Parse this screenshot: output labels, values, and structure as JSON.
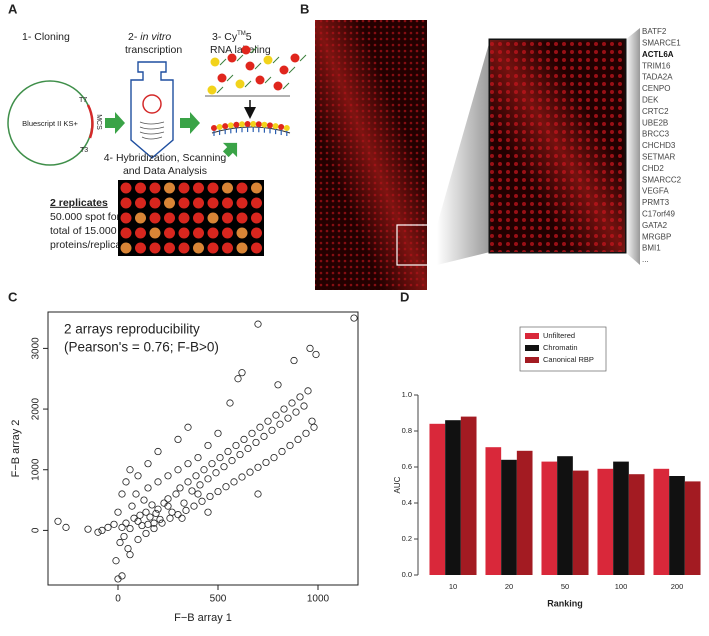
{
  "panel_a": {
    "label": "A",
    "step1": "1- Cloning",
    "step2": [
      "2-",
      "in vitro",
      "transcription"
    ],
    "step3": [
      "3- Cy",
      "TM",
      "5",
      "RNA labeling"
    ],
    "plasmid": "Bluescript II KS+",
    "t7": "T7",
    "t3": "T3",
    "mcs": "MCS",
    "step4": [
      "4- Hybridization, Scanning",
      "and Data Analysis"
    ],
    "replicates": "2 replicates",
    "spots": [
      "50.000 spot for a",
      "total of 15.000",
      "proteins/replica"
    ]
  },
  "panel_b": {
    "label": "B",
    "genes": [
      "BATF2",
      "SMARCE1",
      "ACTL6A",
      "TRIM16",
      "TADA2A",
      "CENPO",
      "DEK",
      "CRTC2",
      "UBE2B",
      "BRCC3",
      "CHCHD3",
      "SETMAR",
      "CHD2",
      "SMARCC2",
      "VEGFA",
      "PRMT3",
      "C17orf49",
      "GATA2",
      "MRGBP",
      "BMI1",
      "..."
    ]
  },
  "panel_c_label": "C",
  "panel_d_label": "D",
  "chart_data": [
    {
      "type": "scatter",
      "annotation": [
        "2 arrays reproducibility",
        "(Pearson's = 0.76; F-B>0)"
      ],
      "x_label": "F−B array 1",
      "y_label": "F−B array 2",
      "color": "#222222",
      "x": [
        20,
        40,
        60,
        80,
        100,
        120,
        140,
        160,
        180,
        200,
        30,
        10,
        50,
        0,
        -20,
        70,
        90,
        110,
        130,
        150,
        170,
        190,
        210,
        230,
        250,
        270,
        290,
        310,
        330,
        350,
        370,
        390,
        410,
        430,
        450,
        470,
        490,
        510,
        530,
        550,
        570,
        590,
        610,
        630,
        650,
        670,
        690,
        710,
        730,
        750,
        770,
        790,
        810,
        830,
        850,
        870,
        890,
        910,
        930,
        950,
        970,
        990,
        960,
        700,
        1180,
        880,
        800,
        620,
        600,
        560,
        500,
        450,
        400,
        350,
        300,
        250,
        200,
        150,
        100,
        60,
        40,
        20,
        -50,
        -100,
        -150,
        -300,
        -260,
        -80,
        0,
        20,
        -10,
        60,
        100,
        140,
        180,
        220,
        260,
        300,
        340,
        380,
        420,
        460,
        500,
        540,
        580,
        620,
        660,
        700,
        740,
        780,
        820,
        860,
        900,
        940,
        980,
        300,
        350,
        200,
        150,
        400,
        250,
        320,
        450,
        700
      ],
      "values": [
        50,
        120,
        30,
        200,
        150,
        80,
        300,
        220,
        120,
        350,
        -100,
        -200,
        -300,
        300,
        100,
        400,
        600,
        250,
        500,
        100,
        420,
        280,
        180,
        450,
        520,
        300,
        600,
        700,
        450,
        800,
        650,
        900,
        750,
        1000,
        850,
        1100,
        950,
        1200,
        1050,
        1300,
        1150,
        1400,
        1250,
        1500,
        1350,
        1600,
        1450,
        1700,
        1550,
        1800,
        1650,
        1900,
        1750,
        2000,
        1850,
        2100,
        1950,
        2200,
        2050,
        2300,
        1800,
        2900,
        3000,
        3400,
        3500,
        2800,
        2400,
        2600,
        2500,
        2100,
        1600,
        1400,
        1200,
        1100,
        1000,
        900,
        800,
        700,
        900,
        1000,
        800,
        600,
        50,
        -30,
        20,
        150,
        50,
        0,
        -800,
        -750,
        -500,
        -400,
        -150,
        -50,
        30,
        120,
        200,
        260,
        330,
        400,
        480,
        560,
        640,
        720,
        800,
        880,
        960,
        1040,
        1120,
        1200,
        1300,
        1400,
        1500,
        1600,
        1700,
        1500,
        1700,
        1300,
        1100,
        600,
        400,
        200,
        300,
        600
      ],
      "xlim": [
        -350,
        1200
      ],
      "ylim": [
        -900,
        3600
      ],
      "xticks": [
        0,
        500,
        1000
      ],
      "yticks": [
        0,
        1000,
        2000,
        3000
      ]
    },
    {
      "type": "bar",
      "y_label": "AUC",
      "x_label": "Ranking",
      "categories": [
        "10",
        "20",
        "50",
        "100",
        "200"
      ],
      "series": [
        {
          "name": "Unfiltered",
          "color": "#d9283a",
          "values": [
            0.84,
            0.71,
            0.63,
            0.59,
            0.59
          ]
        },
        {
          "name": "Chromatin",
          "color": "#111111",
          "values": [
            0.86,
            0.64,
            0.66,
            0.63,
            0.55
          ]
        },
        {
          "name": "Canonical RBP",
          "color": "#a31b22",
          "values": [
            0.88,
            0.69,
            0.58,
            0.56,
            0.52
          ]
        }
      ],
      "ylim": [
        0,
        1
      ],
      "yticks": [
        {
          "value": 0,
          "label": "0.0"
        },
        0.2,
        0.4,
        0.6,
        0.8,
        {
          "value": 1,
          "label": "1.0"
        }
      ],
      "legend": "top"
    }
  ]
}
